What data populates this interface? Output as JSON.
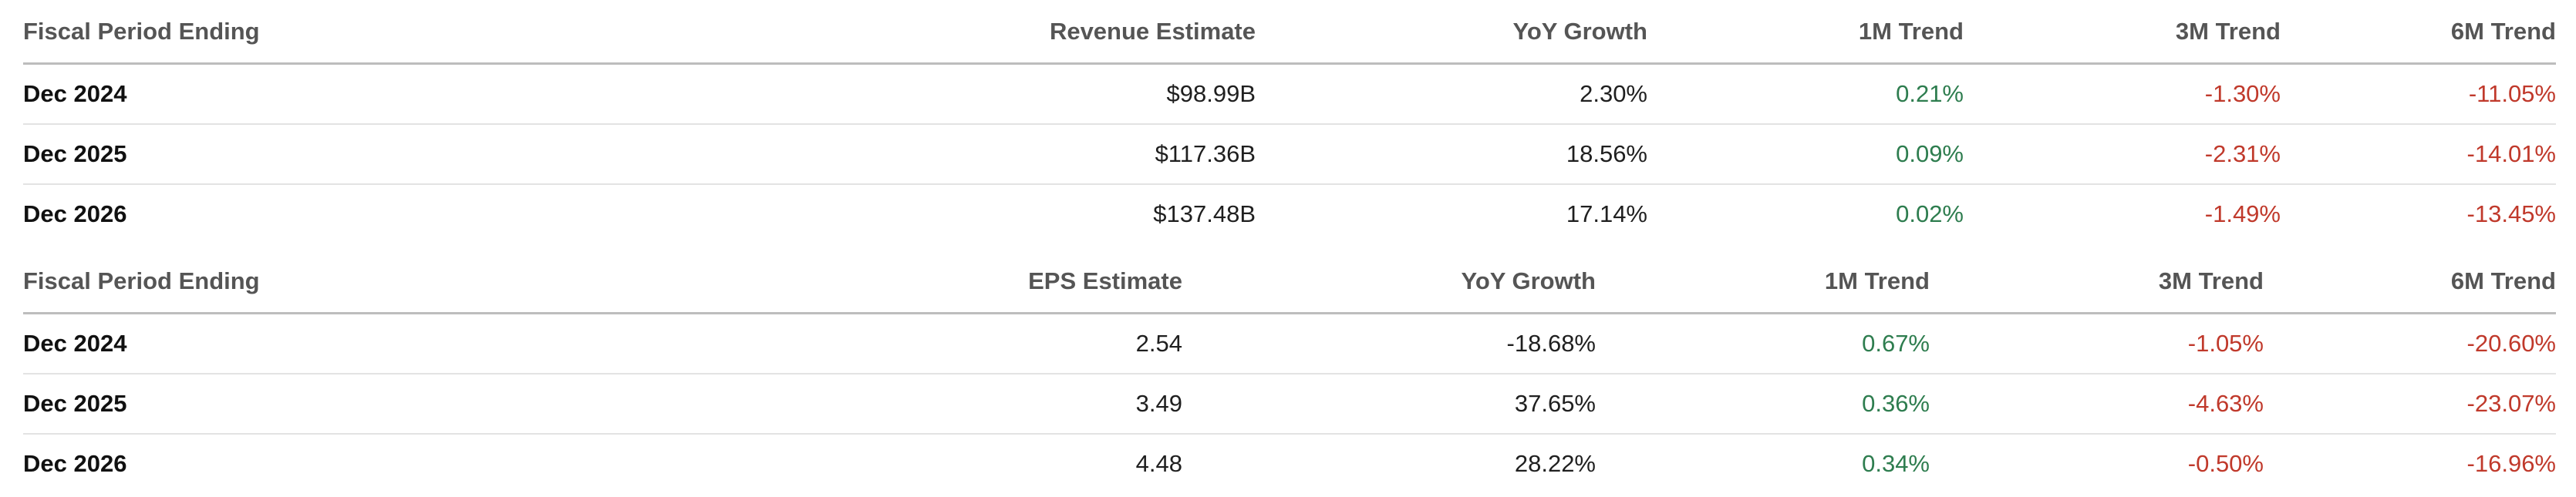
{
  "revenue_table": {
    "headers": [
      "Fiscal Period Ending",
      "Revenue Estimate",
      "YoY Growth",
      "1M Trend",
      "3M Trend",
      "6M Trend"
    ],
    "rows": [
      {
        "period": "Dec 2024",
        "estimate": "$98.99B",
        "yoy": "2.30%",
        "m1": "0.21%",
        "m3": "-1.30%",
        "m6": "-11.05%"
      },
      {
        "period": "Dec 2025",
        "estimate": "$117.36B",
        "yoy": "18.56%",
        "m1": "0.09%",
        "m3": "-2.31%",
        "m6": "-14.01%"
      },
      {
        "period": "Dec 2026",
        "estimate": "$137.48B",
        "yoy": "17.14%",
        "m1": "0.02%",
        "m3": "-1.49%",
        "m6": "-13.45%"
      }
    ]
  },
  "eps_table": {
    "headers": [
      "Fiscal Period Ending",
      "EPS Estimate",
      "YoY Growth",
      "1M Trend",
      "3M Trend",
      "6M Trend"
    ],
    "rows": [
      {
        "period": "Dec 2024",
        "estimate": "2.54",
        "yoy": "-18.68%",
        "m1": "0.67%",
        "m3": "-1.05%",
        "m6": "-20.60%"
      },
      {
        "period": "Dec 2025",
        "estimate": "3.49",
        "yoy": "37.65%",
        "m1": "0.36%",
        "m3": "-4.63%",
        "m6": "-23.07%"
      },
      {
        "period": "Dec 2026",
        "estimate": "4.48",
        "yoy": "28.22%",
        "m1": "0.34%",
        "m3": "-0.50%",
        "m6": "-16.96%"
      }
    ]
  },
  "colors": {
    "positive": "#2e7d4f",
    "negative": "#c0392b",
    "header_text": "#555555"
  }
}
